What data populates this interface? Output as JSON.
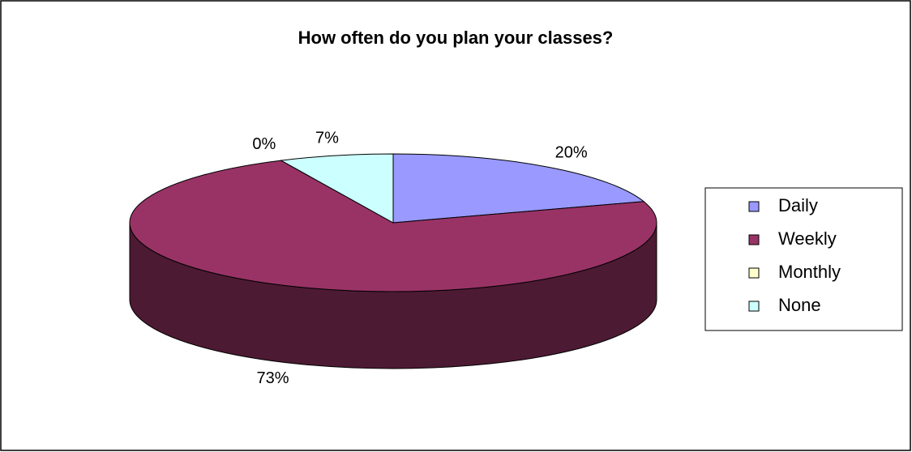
{
  "chart_data": {
    "type": "pie",
    "title": "How often do you plan your classes?",
    "categories": [
      "Daily",
      "Weekly",
      "Monthly",
      "None"
    ],
    "values": [
      20,
      73,
      0,
      7
    ],
    "value_labels": [
      "20%",
      "73%",
      "0%",
      "7%"
    ],
    "colors": [
      "#9999ff",
      "#993366",
      "#ffffcc",
      "#ccffff"
    ],
    "legend": "right"
  }
}
